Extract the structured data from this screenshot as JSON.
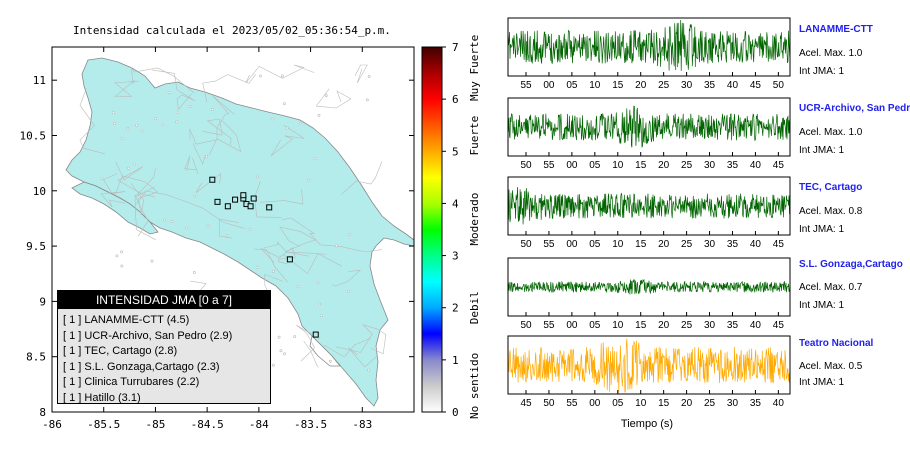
{
  "map": {
    "title": "Intensidad calculada el 2023/05/02_05:36:54_p.m.",
    "x_ticks": [
      "-86",
      "-85.5",
      "-85",
      "-84.5",
      "-84",
      "-83.5",
      "-83"
    ],
    "y_ticks": [
      "11",
      "10.5",
      "10",
      "9.5",
      "9",
      "8.5",
      "8"
    ],
    "xlim": [
      -86,
      -82.5
    ],
    "ylim": [
      8,
      11.3
    ],
    "land_color": "#b4ecec",
    "stations_marked": [
      {
        "lon": -84.45,
        "lat": 10.1
      },
      {
        "lon": -84.4,
        "lat": 9.9
      },
      {
        "lon": -84.3,
        "lat": 9.86
      },
      {
        "lon": -84.23,
        "lat": 9.92
      },
      {
        "lon": -84.15,
        "lat": 9.93
      },
      {
        "lon": -84.12,
        "lat": 9.88
      },
      {
        "lon": -84.05,
        "lat": 9.93
      },
      {
        "lon": -84.15,
        "lat": 9.96
      },
      {
        "lon": -84.08,
        "lat": 9.86
      },
      {
        "lon": -83.9,
        "lat": 9.85
      },
      {
        "lon": -83.7,
        "lat": 9.38
      },
      {
        "lon": -83.45,
        "lat": 8.7
      }
    ],
    "legend": {
      "title": "INTENSIDAD JMA [0 a 7]",
      "items": [
        "[ 1 ] LANAMME-CTT (4.5)",
        "[ 1 ] UCR-Archivo, San Pedro (2.9)",
        "[ 1 ] TEC, Cartago (2.8)",
        "[ 1 ] S.L. Gonzaga,Cartago (2.3)",
        "[ 1 ] Clinica Turrubares (2.2)",
        "[ 1 ] Hatillo (3.1)"
      ]
    }
  },
  "colorbar": {
    "ticks": [
      "0",
      "1",
      "2",
      "3",
      "4",
      "5",
      "6",
      "7"
    ],
    "range": [
      0,
      7
    ],
    "labels": [
      {
        "text": "No sentido",
        "at": 0.5
      },
      {
        "text": "Debil",
        "at": 2
      },
      {
        "text": "Moderado",
        "at": 3.7
      },
      {
        "text": "Fuerte",
        "at": 5.3
      },
      {
        "text": "Muy Fuerte",
        "at": 6.6
      }
    ],
    "stops": [
      "#ffffff",
      "#cccccc",
      "#8888cc",
      "#0000ff",
      "#00aaff",
      "#00ffff",
      "#00ff88",
      "#00ff00",
      "#aaff00",
      "#ffff00",
      "#ffaa00",
      "#ff5500",
      "#ff0000",
      "#aa0000",
      "#400000"
    ]
  },
  "chart_data": [
    {
      "type": "line",
      "title": "LANAMME-CTT",
      "series": [
        {
          "name": "LANAMME-CTT",
          "color": "#006400"
        }
      ],
      "x_ticks": [
        "55",
        "00",
        "05",
        "10",
        "15",
        "20",
        "25",
        "30",
        "35",
        "40",
        "45",
        "50"
      ],
      "info": [
        "Acel. Max. 1.0",
        "Int JMA: 1"
      ],
      "amplitude": 0.6,
      "burst_at": 0.6
    },
    {
      "type": "line",
      "title": "UCR-Archivo, San Pedro",
      "series": [
        {
          "name": "UCR-Archivo, San Pedro",
          "color": "#006400"
        }
      ],
      "x_ticks": [
        "50",
        "55",
        "00",
        "05",
        "10",
        "15",
        "20",
        "25",
        "30",
        "35",
        "40",
        "45"
      ],
      "info": [
        "Acel. Max. 1.0",
        "Int JMA: 1"
      ],
      "amplitude": 0.4,
      "burst_at": 0.45
    },
    {
      "type": "line",
      "title": "TEC, Cartago",
      "series": [
        {
          "name": "TEC, Cartago",
          "color": "#006400"
        }
      ],
      "x_ticks": [
        "50",
        "55",
        "00",
        "05",
        "10",
        "15",
        "20",
        "25",
        "30",
        "35",
        "40",
        "45"
      ],
      "info": [
        "Acel. Max. 0.8",
        "Int JMA: 1"
      ],
      "amplitude": 0.35,
      "burst_at": 0.05
    },
    {
      "type": "line",
      "title": "S.L. Gonzaga,Cartago",
      "series": [
        {
          "name": "S.L. Gonzaga,Cartago",
          "color": "#006400"
        }
      ],
      "x_ticks": [
        "50",
        "55",
        "00",
        "05",
        "10",
        "15",
        "20",
        "25",
        "30",
        "35",
        "40",
        "45"
      ],
      "info": [
        "Acel. Max. 0.7",
        "Int JMA: 1"
      ],
      "amplitude": 0.12,
      "burst_at": 0.45
    },
    {
      "type": "line",
      "title": "Teatro Nacional",
      "series": [
        {
          "name": "Teatro Nacional",
          "color": "#ffaa00"
        }
      ],
      "x_ticks": [
        "45",
        "50",
        "55",
        "00",
        "05",
        "10",
        "15",
        "20",
        "25",
        "30",
        "35",
        "40"
      ],
      "info": [
        "Acel. Max. 0.5",
        "Int JMA: 1"
      ],
      "xlabel": "Tiempo (s)",
      "amplitude": 0.7,
      "burst_at": 0.4
    }
  ]
}
